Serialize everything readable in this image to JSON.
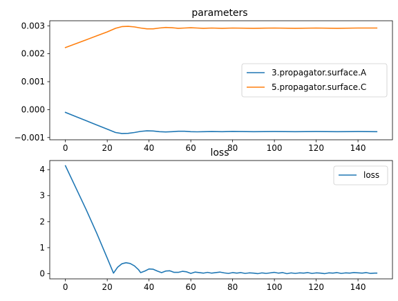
{
  "chart_data": [
    {
      "type": "line",
      "title": "parameters",
      "xlabel": "",
      "ylabel": "",
      "xlim": [
        -7.5,
        156.5
      ],
      "ylim": [
        -0.00108,
        0.00318
      ],
      "xticks": [
        0,
        20,
        40,
        60,
        80,
        100,
        120,
        140
      ],
      "xtick_labels": [
        "0",
        "20",
        "40",
        "60",
        "80",
        "100",
        "120",
        "140"
      ],
      "yticks": [
        -0.001,
        0.0,
        0.001,
        0.002,
        0.003
      ],
      "ytick_labels": [
        "−0.001",
        "0.000",
        "0.001",
        "0.002",
        "0.003"
      ],
      "legend_position": "center-right",
      "grid": false,
      "series": [
        {
          "name": "3.propagator.surface.A",
          "color": "#1f77b4",
          "points": [
            [
              0,
              -0.0001
            ],
            [
              5,
              -0.00025
            ],
            [
              10,
              -0.0004
            ],
            [
              15,
              -0.00055
            ],
            [
              20,
              -0.0007
            ],
            [
              24,
              -0.00082
            ],
            [
              27,
              -0.000855
            ],
            [
              30,
              -0.00085
            ],
            [
              33,
              -0.00082
            ],
            [
              36,
              -0.00078
            ],
            [
              39,
              -0.00076
            ],
            [
              42,
              -0.000765
            ],
            [
              45,
              -0.00079
            ],
            [
              48,
              -0.0008
            ],
            [
              51,
              -0.00079
            ],
            [
              54,
              -0.000775
            ],
            [
              57,
              -0.000775
            ],
            [
              60,
              -0.00079
            ],
            [
              63,
              -0.000795
            ],
            [
              66,
              -0.00079
            ],
            [
              70,
              -0.000785
            ],
            [
              75,
              -0.00079
            ],
            [
              80,
              -0.00078
            ],
            [
              90,
              -0.00079
            ],
            [
              100,
              -0.000785
            ],
            [
              110,
              -0.00079
            ],
            [
              120,
              -0.000785
            ],
            [
              130,
              -0.00079
            ],
            [
              140,
              -0.000785
            ],
            [
              149,
              -0.00079
            ]
          ]
        },
        {
          "name": "5.propagator.surface.C",
          "color": "#ff7f0e",
          "points": [
            [
              0,
              0.00222
            ],
            [
              5,
              0.00236
            ],
            [
              10,
              0.0025
            ],
            [
              15,
              0.00264
            ],
            [
              20,
              0.00278
            ],
            [
              24,
              0.00291
            ],
            [
              27,
              0.00297
            ],
            [
              30,
              0.00298
            ],
            [
              33,
              0.00296
            ],
            [
              36,
              0.00292
            ],
            [
              39,
              0.00289
            ],
            [
              42,
              0.00289
            ],
            [
              45,
              0.00292
            ],
            [
              48,
              0.00294
            ],
            [
              51,
              0.00293
            ],
            [
              54,
              0.00291
            ],
            [
              57,
              0.00292
            ],
            [
              60,
              0.00293
            ],
            [
              63,
              0.00292
            ],
            [
              66,
              0.00291
            ],
            [
              70,
              0.00292
            ],
            [
              75,
              0.00291
            ],
            [
              80,
              0.00292
            ],
            [
              90,
              0.00291
            ],
            [
              100,
              0.00292
            ],
            [
              110,
              0.00291
            ],
            [
              120,
              0.00292
            ],
            [
              130,
              0.00291
            ],
            [
              140,
              0.00292
            ],
            [
              149,
              0.00292
            ]
          ]
        }
      ]
    },
    {
      "type": "line",
      "title": "loss",
      "xlabel": "",
      "ylabel": "",
      "xlim": [
        -7.5,
        156.5
      ],
      "ylim": [
        -0.2,
        4.35
      ],
      "xticks": [
        0,
        20,
        40,
        60,
        80,
        100,
        120,
        140
      ],
      "xtick_labels": [
        "0",
        "20",
        "40",
        "60",
        "80",
        "100",
        "120",
        "140"
      ],
      "yticks": [
        0,
        1,
        2,
        3,
        4
      ],
      "ytick_labels": [
        "0",
        "1",
        "2",
        "3",
        "4"
      ],
      "legend_position": "top-right",
      "grid": false,
      "series": [
        {
          "name": "loss",
          "color": "#1f77b4",
          "points": [
            [
              0,
              4.15
            ],
            [
              5,
              3.3
            ],
            [
              10,
              2.45
            ],
            [
              15,
              1.55
            ],
            [
              20,
              0.6
            ],
            [
              23,
              0.02
            ],
            [
              25,
              0.25
            ],
            [
              27,
              0.38
            ],
            [
              29,
              0.42
            ],
            [
              31,
              0.39
            ],
            [
              33,
              0.3
            ],
            [
              35,
              0.15
            ],
            [
              36,
              0.04
            ],
            [
              38,
              0.1
            ],
            [
              40,
              0.18
            ],
            [
              42,
              0.17
            ],
            [
              44,
              0.1
            ],
            [
              46,
              0.04
            ],
            [
              48,
              0.1
            ],
            [
              50,
              0.11
            ],
            [
              52,
              0.05
            ],
            [
              54,
              0.05
            ],
            [
              56,
              0.09
            ],
            [
              58,
              0.07
            ],
            [
              60,
              0.01
            ],
            [
              62,
              0.06
            ],
            [
              64,
              0.04
            ],
            [
              66,
              0.02
            ],
            [
              68,
              0.05
            ],
            [
              70,
              0.02
            ],
            [
              72,
              0.04
            ],
            [
              74,
              0.06
            ],
            [
              76,
              0.03
            ],
            [
              78,
              0.01
            ],
            [
              80,
              0.04
            ],
            [
              82,
              0.02
            ],
            [
              84,
              0.04
            ],
            [
              86,
              0.01
            ],
            [
              88,
              0.03
            ],
            [
              90,
              0.02
            ],
            [
              92,
              0.0
            ],
            [
              94,
              0.03
            ],
            [
              96,
              0.01
            ],
            [
              98,
              0.03
            ],
            [
              100,
              0.05
            ],
            [
              102,
              0.02
            ],
            [
              104,
              0.04
            ],
            [
              106,
              0.0
            ],
            [
              108,
              0.03
            ],
            [
              110,
              0.01
            ],
            [
              112,
              0.03
            ],
            [
              114,
              0.02
            ],
            [
              116,
              0.04
            ],
            [
              118,
              0.01
            ],
            [
              120,
              0.03
            ],
            [
              122,
              0.02
            ],
            [
              124,
              0.0
            ],
            [
              126,
              0.03
            ],
            [
              128,
              0.02
            ],
            [
              130,
              0.04
            ],
            [
              132,
              0.01
            ],
            [
              134,
              0.03
            ],
            [
              136,
              0.02
            ],
            [
              138,
              0.04
            ],
            [
              140,
              0.03
            ],
            [
              142,
              0.02
            ],
            [
              144,
              0.04
            ],
            [
              146,
              0.01
            ],
            [
              148,
              0.02
            ],
            [
              149,
              0.02
            ]
          ]
        }
      ]
    }
  ]
}
